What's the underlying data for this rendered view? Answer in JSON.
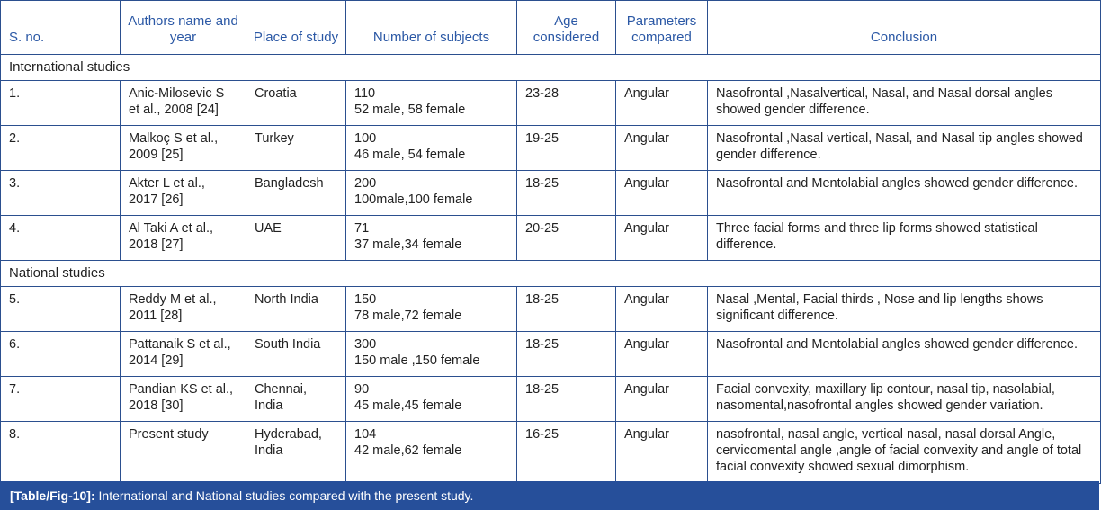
{
  "headers": [
    "S. no.",
    "Authors name and year",
    "Place of study",
    "Number of subjects",
    "Age considered",
    "Parameters compared",
    "Conclusion"
  ],
  "sections": [
    {
      "title": "International studies",
      "rows": [
        {
          "sno": "1.",
          "author": "Anic-Milosevic S et al., 2008 [24]",
          "place": "Croatia",
          "subjects_total": "110",
          "subjects_split": "52 male, 58 female",
          "age": "23-28",
          "params": "Angular",
          "conclusion": "Nasofrontal ,Nasalvertical, Nasal, and Nasal dorsal angles showed gender difference."
        },
        {
          "sno": "2.",
          "author": "Malkoç S et al., 2009 [25]",
          "place": "Turkey",
          "subjects_total": "100",
          "subjects_split": "46 male, 54 female",
          "age": "19-25",
          "params": "Angular",
          "conclusion": "Nasofrontal ,Nasal vertical, Nasal, and Nasal tip angles showed gender difference."
        },
        {
          "sno": "3.",
          "author": "Akter L et al., 2017 [26]",
          "place": "Bangladesh",
          "subjects_total": "200",
          "subjects_split": "100male,100 female",
          "age": "18-25",
          "params": "Angular",
          "conclusion": "Nasofrontal and Mentolabial angles showed gender difference."
        },
        {
          "sno": "4.",
          "author": "Al Taki A et al., 2018 [27]",
          "place": "UAE",
          "subjects_total": "71",
          "subjects_split": "37 male,34 female",
          "age": "20-25",
          "params": "Angular",
          "conclusion": "Three facial forms and three lip forms showed statistical difference."
        }
      ]
    },
    {
      "title": "National studies",
      "rows": [
        {
          "sno": "5.",
          "author": "Reddy M et al., 2011 [28]",
          "place": "North India",
          "subjects_total": "150",
          "subjects_split": "78 male,72 female",
          "age": "18-25",
          "params": "Angular",
          "conclusion": "Nasal ,Mental, Facial thirds , Nose and lip lengths shows significant difference."
        },
        {
          "sno": "6.",
          "author": "Pattanaik S et al., 2014 [29]",
          "place": "South India",
          "subjects_total": "300",
          "subjects_split": "150 male ,150 female",
          "age": "18-25",
          "params": "Angular",
          "conclusion": "Nasofrontal and Mentolabial angles showed gender difference."
        },
        {
          "sno": "7.",
          "author": "Pandian KS et al., 2018 [30]",
          "place": "Chennai, India",
          "subjects_total": "90",
          "subjects_split": "45 male,45 female",
          "age": "18-25",
          "params": "Angular",
          "conclusion": "Facial convexity, maxillary lip contour, nasal tip, nasolabial, nasomental,nasofrontal angles showed gender variation."
        },
        {
          "sno": "8.",
          "author": "Present study",
          "place": "Hyderabad, India",
          "subjects_total": "104",
          "subjects_split": "42 male,62 female",
          "age": "16-25",
          "params": "Angular",
          "conclusion": "nasofrontal, nasal angle, vertical nasal, nasal dorsal Angle, cervicomental angle ,angle of facial convexity and angle of total facial convexity showed sexual dimorphism."
        }
      ]
    }
  ],
  "caption": {
    "label": "[Table/Fig-10]:",
    "text": " International and National studies compared with the present study."
  }
}
